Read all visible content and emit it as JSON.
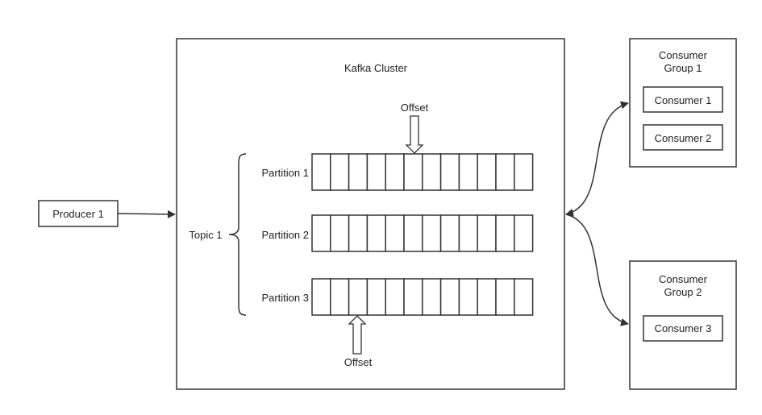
{
  "producer": {
    "label": "Producer 1"
  },
  "cluster": {
    "title": "Kafka Cluster"
  },
  "topic": {
    "label": "Topic 1"
  },
  "partitions": [
    {
      "label": "Partition 1"
    },
    {
      "label": "Partition 2"
    },
    {
      "label": "Partition 3"
    }
  ],
  "offsets": {
    "top_label": "Offset",
    "bottom_label": "Offset"
  },
  "consumer_groups": [
    {
      "title_line1": "Consumer",
      "title_line2": "Group 1",
      "consumers": [
        "Consumer 1",
        "Consumer 2"
      ]
    },
    {
      "title_line1": "Consumer",
      "title_line2": "Group 2",
      "consumers": [
        "Consumer 3"
      ]
    }
  ],
  "colors": {
    "stroke": "#333333",
    "background": "#ffffff",
    "text": "#222222"
  }
}
